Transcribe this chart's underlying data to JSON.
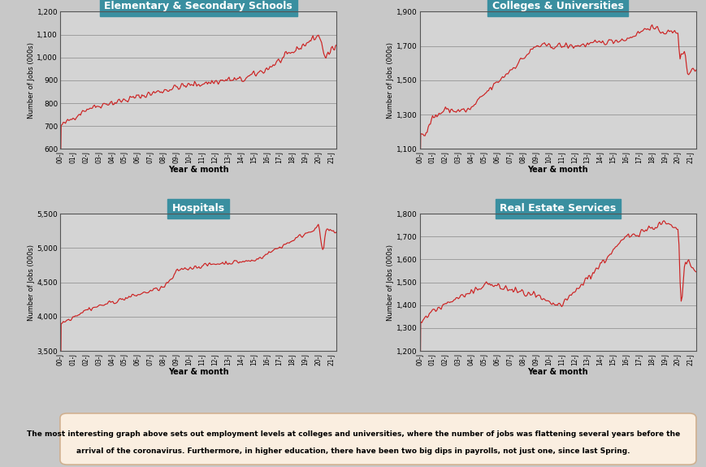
{
  "title_color": "#3a8fa0",
  "line_color": "#cc2222",
  "bg_color": "#c8c8c8",
  "plot_bg_color": "#d4d4d4",
  "text_box_bg": "#faeee0",
  "text_box_border": "#d0b090",
  "ylabel": "Number of Jobs (000s)",
  "xlabel": "Year & month",
  "caption_line1": "The most interesting graph above sets out employment levels at colleges and universities, where the number of jobs was flattening several years before the",
  "caption_line2": "arrival of the coronavirus. Furthermore, in higher education, there have been two big dips in payrolls, not just one, since last Spring.",
  "subplots": [
    {
      "title": "Elementary & Secondary Schools",
      "ylim": [
        600,
        1200
      ],
      "yticks": [
        600,
        700,
        800,
        900,
        1000,
        1100,
        1200
      ],
      "ytick_labels": [
        "600",
        "700",
        "800",
        "900",
        "1,000",
        "1,100",
        "1,200"
      ]
    },
    {
      "title": "Colleges & Universities",
      "ylim": [
        1100,
        1900
      ],
      "yticks": [
        1100,
        1300,
        1500,
        1700,
        1900
      ],
      "ytick_labels": [
        "1,100",
        "1,300",
        "1,500",
        "1,700",
        "1,900"
      ]
    },
    {
      "title": "Hospitals",
      "ylim": [
        3500,
        5500
      ],
      "yticks": [
        3500,
        4000,
        4500,
        5000,
        5500
      ],
      "ytick_labels": [
        "3,500",
        "4,000",
        "4,500",
        "5,000",
        "5,500"
      ]
    },
    {
      "title": "Real Estate Services",
      "ylim": [
        1200,
        1800
      ],
      "yticks": [
        1200,
        1300,
        1400,
        1500,
        1600,
        1700,
        1800
      ],
      "ytick_labels": [
        "1,200",
        "1,300",
        "1,400",
        "1,500",
        "1,600",
        "1,700",
        "1,800"
      ]
    }
  ],
  "xtick_labels": [
    "00-J",
    "01-J",
    "02-J",
    "03-J",
    "04-J",
    "05-J",
    "06-J",
    "07-J",
    "08-J",
    "09-J",
    "10-J",
    "11-J",
    "12-J",
    "13-J",
    "14-J",
    "15-J",
    "16-J",
    "17-J",
    "18-J",
    "19-J",
    "20-J",
    "21-J"
  ],
  "n_months": 258
}
